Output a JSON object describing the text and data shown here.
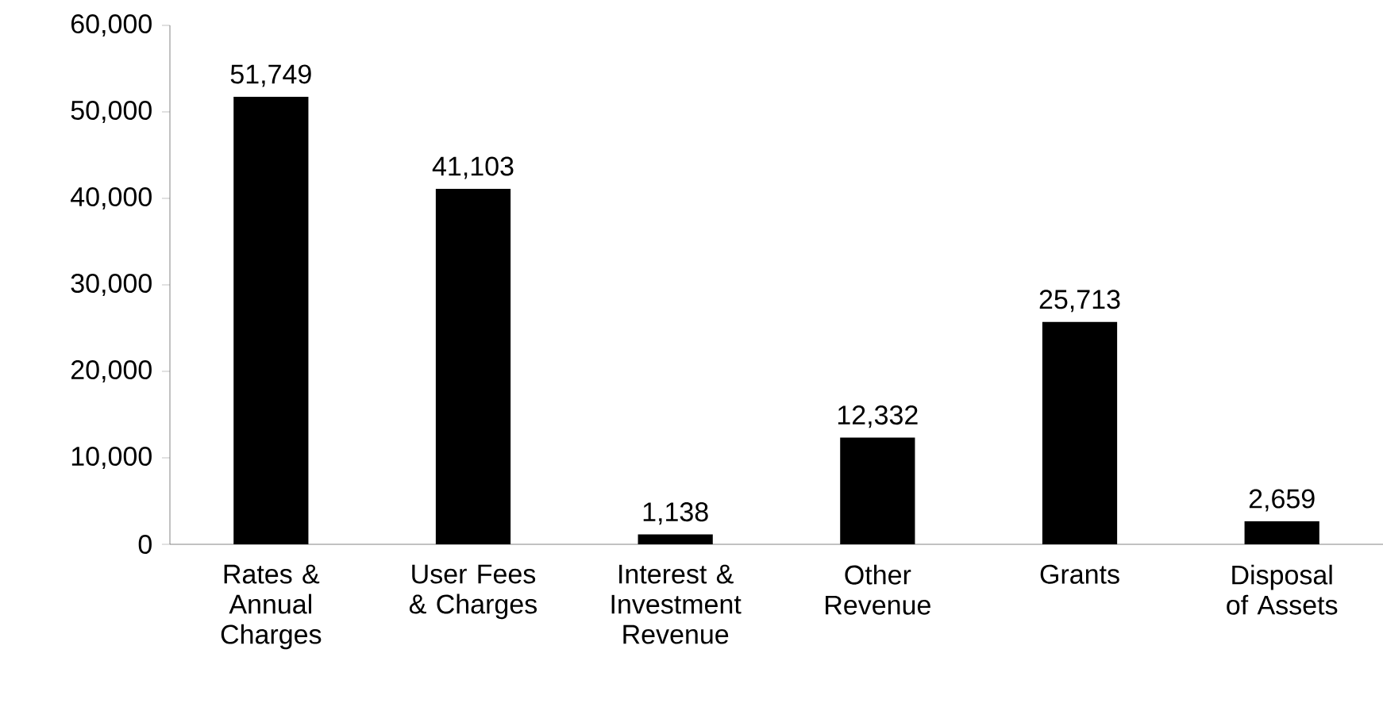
{
  "chart_data": {
    "type": "bar",
    "categories": [
      "Rates & Annual Charges",
      "User Fees & Charges",
      "Interest & Investment Revenue",
      "Other Revenue",
      "Grants",
      "Disposal of Assets"
    ],
    "values": [
      51749,
      41103,
      1138,
      12332,
      25713,
      2659
    ],
    "value_labels": [
      "51,749",
      "41,103",
      "1,138",
      "12,332",
      "25,713",
      "2,659"
    ],
    "color": "#000000",
    "ylim": [
      0,
      60000
    ],
    "yticks": [
      {
        "value": 0,
        "label": "0"
      },
      {
        "value": 10000,
        "label": "10,000"
      },
      {
        "value": 20000,
        "label": "20,000"
      },
      {
        "value": 30000,
        "label": "30,000"
      },
      {
        "value": 40000,
        "label": "40,000"
      },
      {
        "value": 50000,
        "label": "50,000"
      },
      {
        "value": 60000,
        "label": "60,000"
      }
    ],
    "grid": false
  }
}
